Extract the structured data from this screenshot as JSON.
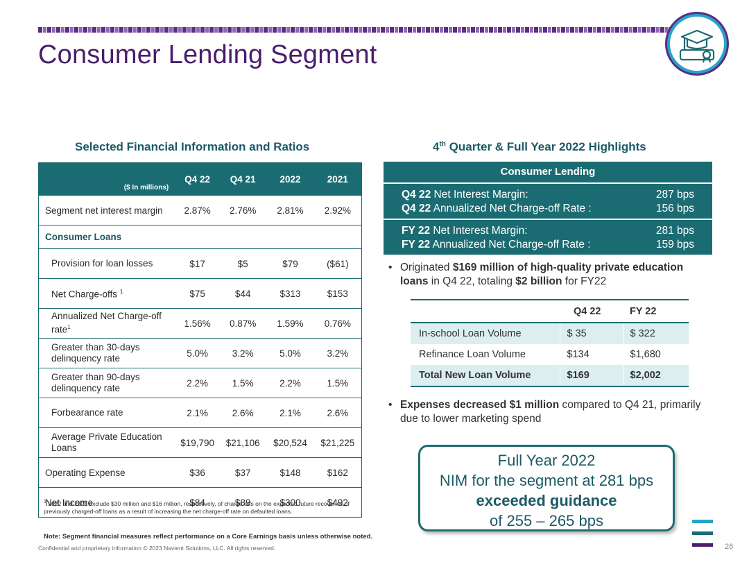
{
  "header": {
    "title": "Consumer Lending Segment"
  },
  "left": {
    "heading": "Selected Financial Information and Ratios",
    "unit_label": "($ In millions)",
    "columns": [
      "Q4 22",
      "Q4 21",
      "2022",
      "2021"
    ],
    "rows": [
      {
        "label": "Segment net interest margin",
        "values": [
          "2.87%",
          "2.76%",
          "2.81%",
          "2.92%"
        ]
      },
      {
        "label": "Consumer Loans"
      },
      {
        "label": "Provision for loan losses",
        "values": [
          "$17",
          "$5",
          "$79",
          "($61)"
        ]
      },
      {
        "label": "Net Charge-offs",
        "sup": "1",
        "values": [
          "$75",
          "$44",
          "$313",
          "$153"
        ]
      },
      {
        "label": "Annualized Net Charge-off rate",
        "sup": "1",
        "values": [
          "1.56%",
          "0.87%",
          "1.59%",
          "0.76%"
        ]
      },
      {
        "label": "Greater than 30-days delinquency rate",
        "values": [
          "5.0%",
          "3.2%",
          "5.0%",
          "3.2%"
        ]
      },
      {
        "label": "Greater than 90-days delinquency rate",
        "values": [
          "2.2%",
          "1.5%",
          "2.2%",
          "1.5%"
        ]
      },
      {
        "label": "Forbearance rate",
        "values": [
          "2.1%",
          "2.6%",
          "2.1%",
          "2.6%"
        ]
      },
      {
        "label": "Average Private Education Loans",
        "values": [
          "$19,790",
          "$21,106",
          "$20,524",
          "$21,225"
        ]
      },
      {
        "label": "Operating Expense",
        "values": [
          "$36",
          "$37",
          "$148",
          "$162"
        ]
      },
      {
        "label": "Net Income",
        "values": [
          "$84",
          "$89",
          "$300",
          "$492"
        ]
      }
    ],
    "footnote_sup": "1",
    "footnote": "2022 and 2021 exclude $30 million and $16 million, respectively, of charge-offs on the expected future recoveries of previously charged-off loans as a result of increasing the net charge-off rate on defaulted loans.",
    "note": "Note: Segment financial measures reflect performance on a Core Earnings basis unless otherwise noted."
  },
  "right": {
    "heading_pre": "4",
    "heading_sup": "th",
    "heading_post": " Quarter & Full Year 2022 Highlights",
    "box_title": "Consumer Lending",
    "metrics": [
      {
        "period": "Q4 22",
        "label": " Net Interest Margin:",
        "value": "287 bps"
      },
      {
        "period": "Q4 22",
        "label": " Annualized Net Charge-off Rate :",
        "value": "156 bps"
      },
      {
        "period": "FY 22",
        "label": " Net Interest Margin:",
        "value": "281 bps"
      },
      {
        "period": "FY 22",
        "label": " Annualized Net Charge-off Rate :",
        "value": "159 bps"
      }
    ],
    "bullet1": {
      "t1": "Originated ",
      "b1": "$169 million of high-quality private education loans",
      "t2": " in Q4 22, totaling ",
      "b2": "$2 billion",
      "t3": " for FY22"
    },
    "loan_table": {
      "columns": [
        "",
        "Q4 22",
        "FY 22"
      ],
      "rows": [
        {
          "label": "In-school Loan Volume",
          "q4": "$ 35",
          "fy": "$ 322"
        },
        {
          "label": "Refinance Loan Volume",
          "q4": "$134",
          "fy": "$1,680"
        },
        {
          "label": "Total New Loan Volume",
          "q4": "$169",
          "fy": "$2,002"
        }
      ]
    },
    "bullet2": {
      "b1": "Expenses decreased $1 million",
      "t1": " compared to Q4 21, primarily due to lower marketing spend"
    },
    "callout": {
      "line1": "Full Year 2022",
      "line2": "NIM for the segment at 281 bps",
      "line3": "exceeded guidance",
      "line4": "of 255 – 265 bps"
    }
  },
  "footer": {
    "confidential": "Confidential and proprietary information  © 2023 Navient Solutions, LLC. All rights reserved.",
    "page": "26"
  },
  "colors": {
    "brand_purple": "#4a1d6b",
    "teal": "#1b6c72",
    "light_teal": "#dceef0"
  },
  "icons": {
    "logo": "graduation-cap-diploma-icon"
  }
}
